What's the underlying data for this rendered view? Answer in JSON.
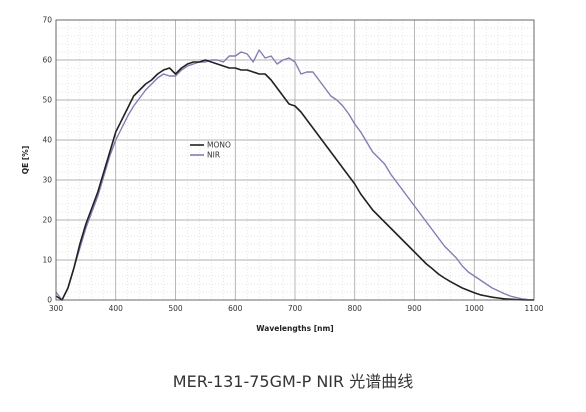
{
  "caption": "MER-131-75GM-P NIR 光谱曲线",
  "chart_data": {
    "type": "line",
    "title": "",
    "xlabel": "Wavelengths [nm]",
    "ylabel": "QE [%]",
    "xlim": [
      300,
      1100
    ],
    "ylim": [
      0,
      70
    ],
    "xticks": [
      300,
      400,
      500,
      600,
      700,
      800,
      900,
      1000,
      1100
    ],
    "yticks": [
      0,
      10,
      20,
      30,
      40,
      50,
      60,
      70
    ],
    "grid": true,
    "legend_position": "center-left",
    "series": [
      {
        "name": "MONO",
        "color": "#222222",
        "x": [
          300,
          310,
          320,
          330,
          340,
          350,
          360,
          370,
          380,
          390,
          400,
          410,
          420,
          430,
          440,
          450,
          460,
          470,
          480,
          490,
          500,
          510,
          520,
          530,
          540,
          550,
          560,
          570,
          580,
          590,
          600,
          610,
          620,
          630,
          640,
          650,
          660,
          670,
          680,
          690,
          700,
          710,
          720,
          730,
          740,
          750,
          760,
          770,
          780,
          790,
          800,
          810,
          820,
          830,
          840,
          850,
          860,
          870,
          880,
          890,
          900,
          910,
          920,
          930,
          940,
          950,
          960,
          970,
          980,
          990,
          1000,
          1010,
          1020,
          1030,
          1040,
          1050,
          1060,
          1070,
          1080,
          1090,
          1100
        ],
        "y": [
          1,
          0,
          3,
          8,
          14,
          19,
          23,
          27,
          32,
          37,
          42,
          45,
          48,
          51,
          52.5,
          54,
          55,
          56.5,
          57.5,
          58,
          56.5,
          58,
          59,
          59.5,
          59.5,
          60,
          59.5,
          59,
          58.5,
          58,
          58,
          57.5,
          57.5,
          57,
          56.5,
          56.5,
          55,
          53,
          51,
          49,
          48.5,
          47,
          45,
          43,
          41,
          39,
          37,
          35,
          33,
          31,
          29,
          26.5,
          24.5,
          22.5,
          21,
          19.5,
          18,
          16.5,
          15,
          13.5,
          12,
          10.5,
          9,
          7.8,
          6.5,
          5.5,
          4.6,
          3.8,
          3,
          2.4,
          1.8,
          1.3,
          1,
          0.7,
          0.5,
          0.3,
          0.2,
          0.1,
          0.05,
          0,
          0
        ]
      },
      {
        "name": "NIR",
        "color": "#8a7ab3",
        "x": [
          300,
          310,
          320,
          330,
          340,
          350,
          360,
          370,
          380,
          390,
          400,
          410,
          420,
          430,
          440,
          450,
          460,
          470,
          480,
          490,
          500,
          510,
          520,
          530,
          540,
          550,
          560,
          570,
          580,
          590,
          600,
          610,
          620,
          630,
          640,
          650,
          660,
          670,
          680,
          690,
          700,
          710,
          720,
          730,
          740,
          750,
          760,
          770,
          780,
          790,
          800,
          810,
          820,
          830,
          840,
          850,
          860,
          870,
          880,
          890,
          900,
          910,
          920,
          930,
          940,
          950,
          960,
          970,
          980,
          990,
          1000,
          1010,
          1020,
          1030,
          1040,
          1050,
          1060,
          1070,
          1080,
          1090,
          1100
        ],
        "y": [
          2,
          0,
          3,
          8,
          13,
          18,
          22,
          26,
          31,
          36,
          40,
          43,
          46,
          48.5,
          50.5,
          52.5,
          54,
          55.5,
          56.5,
          56,
          56,
          57.5,
          58.5,
          59,
          59.5,
          59.5,
          60,
          60,
          59.5,
          61,
          61,
          62,
          61.5,
          59.5,
          62.5,
          60.5,
          61,
          59,
          60,
          60.5,
          59.5,
          56.5,
          57,
          57,
          55,
          53,
          51,
          50,
          48.5,
          46.5,
          44,
          42,
          39.5,
          37,
          35.5,
          34,
          31.5,
          29.5,
          27.5,
          25.5,
          23.5,
          21.5,
          19.5,
          17.5,
          15.5,
          13.5,
          12,
          10.5,
          8.5,
          7,
          6,
          5,
          4,
          3,
          2.3,
          1.6,
          1,
          0.6,
          0.3,
          0.1,
          0
        ]
      }
    ]
  }
}
